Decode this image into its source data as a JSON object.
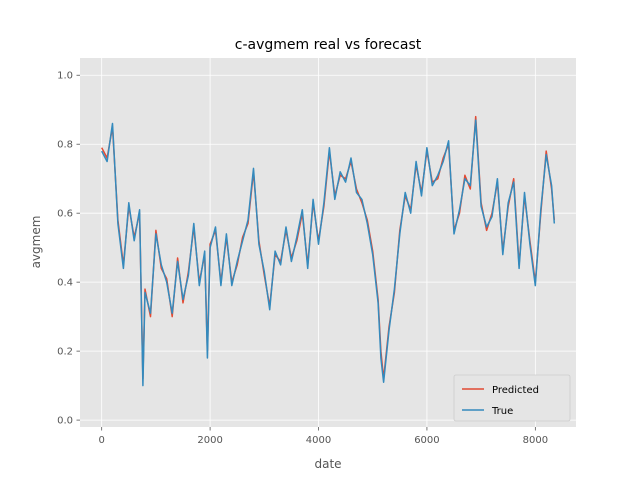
{
  "chart_data": {
    "type": "line",
    "title": "c-avgmem real vs forecast",
    "xlabel": "date",
    "ylabel": "avgmem",
    "xlim": [
      -400,
      8750
    ],
    "ylim": [
      -0.02,
      1.05
    ],
    "x_ticks": [
      0,
      2000,
      4000,
      6000,
      8000
    ],
    "x_tick_labels": [
      "0",
      "2000",
      "4000",
      "6000",
      "8000"
    ],
    "y_ticks": [
      0.0,
      0.2,
      0.4,
      0.6,
      0.8,
      1.0
    ],
    "y_tick_labels": [
      "0.0",
      "0.2",
      "0.4",
      "0.6",
      "0.8",
      "1.0"
    ],
    "grid": true,
    "legend_position": "lower-right",
    "style": {
      "background": "#E5E5E5",
      "grid_color": "#FFFFFF",
      "text_color": "#555555"
    },
    "series": [
      {
        "name": "Predicted",
        "color": "#E24A33",
        "x": [
          0,
          100,
          200,
          300,
          400,
          500,
          600,
          700,
          760,
          800,
          900,
          1000,
          1100,
          1200,
          1300,
          1400,
          1500,
          1600,
          1700,
          1800,
          1900,
          1950,
          2000,
          2100,
          2200,
          2300,
          2400,
          2500,
          2600,
          2700,
          2800,
          2900,
          3000,
          3100,
          3200,
          3300,
          3400,
          3500,
          3600,
          3700,
          3800,
          3900,
          4000,
          4100,
          4200,
          4300,
          4400,
          4500,
          4600,
          4700,
          4800,
          4900,
          5000,
          5100,
          5150,
          5200,
          5300,
          5400,
          5500,
          5600,
          5700,
          5800,
          5900,
          6000,
          6100,
          6200,
          6300,
          6400,
          6500,
          6600,
          6700,
          6800,
          6900,
          7000,
          7100,
          7200,
          7300,
          7400,
          7500,
          7600,
          7700,
          7800,
          7900,
          8000,
          8100,
          8200,
          8300,
          8350
        ],
        "y": [
          0.79,
          0.76,
          0.85,
          0.58,
          0.45,
          0.62,
          0.53,
          0.6,
          0.12,
          0.38,
          0.3,
          0.55,
          0.44,
          0.41,
          0.3,
          0.47,
          0.34,
          0.43,
          0.56,
          0.4,
          0.48,
          0.2,
          0.51,
          0.55,
          0.4,
          0.53,
          0.4,
          0.45,
          0.53,
          0.57,
          0.72,
          0.52,
          0.42,
          0.33,
          0.48,
          0.46,
          0.55,
          0.47,
          0.52,
          0.6,
          0.45,
          0.63,
          0.52,
          0.62,
          0.78,
          0.65,
          0.71,
          0.7,
          0.75,
          0.67,
          0.63,
          0.58,
          0.49,
          0.35,
          0.2,
          0.12,
          0.27,
          0.37,
          0.55,
          0.65,
          0.61,
          0.74,
          0.66,
          0.78,
          0.69,
          0.7,
          0.76,
          0.8,
          0.55,
          0.6,
          0.71,
          0.67,
          0.88,
          0.63,
          0.55,
          0.6,
          0.69,
          0.49,
          0.62,
          0.7,
          0.45,
          0.65,
          0.52,
          0.4,
          0.6,
          0.78,
          0.67,
          0.58
        ]
      },
      {
        "name": "True",
        "color": "#348ABD",
        "x": [
          0,
          100,
          200,
          300,
          400,
          500,
          600,
          700,
          760,
          800,
          900,
          1000,
          1100,
          1200,
          1300,
          1400,
          1500,
          1600,
          1700,
          1800,
          1900,
          1950,
          2000,
          2100,
          2200,
          2300,
          2400,
          2500,
          2600,
          2700,
          2800,
          2900,
          3000,
          3100,
          3200,
          3300,
          3400,
          3500,
          3600,
          3700,
          3800,
          3900,
          4000,
          4100,
          4200,
          4300,
          4400,
          4500,
          4600,
          4700,
          4800,
          4900,
          5000,
          5100,
          5150,
          5200,
          5300,
          5400,
          5500,
          5600,
          5700,
          5800,
          5900,
          6000,
          6100,
          6200,
          6300,
          6400,
          6500,
          6600,
          6700,
          6800,
          6900,
          7000,
          7100,
          7200,
          7300,
          7400,
          7500,
          7600,
          7700,
          7800,
          7900,
          8000,
          8100,
          8200,
          8300,
          8350
        ],
        "y": [
          0.78,
          0.75,
          0.86,
          0.57,
          0.44,
          0.63,
          0.52,
          0.61,
          0.1,
          0.37,
          0.31,
          0.54,
          0.45,
          0.4,
          0.31,
          0.46,
          0.35,
          0.42,
          0.57,
          0.39,
          0.49,
          0.18,
          0.5,
          0.56,
          0.39,
          0.54,
          0.39,
          0.46,
          0.52,
          0.58,
          0.73,
          0.51,
          0.43,
          0.32,
          0.49,
          0.45,
          0.56,
          0.46,
          0.53,
          0.61,
          0.44,
          0.64,
          0.51,
          0.63,
          0.79,
          0.64,
          0.72,
          0.69,
          0.76,
          0.66,
          0.64,
          0.57,
          0.48,
          0.34,
          0.18,
          0.11,
          0.26,
          0.38,
          0.54,
          0.66,
          0.6,
          0.75,
          0.65,
          0.79,
          0.68,
          0.71,
          0.75,
          0.81,
          0.54,
          0.61,
          0.7,
          0.68,
          0.87,
          0.62,
          0.56,
          0.59,
          0.7,
          0.48,
          0.63,
          0.69,
          0.44,
          0.66,
          0.51,
          0.39,
          0.61,
          0.77,
          0.68,
          0.57
        ]
      }
    ]
  }
}
